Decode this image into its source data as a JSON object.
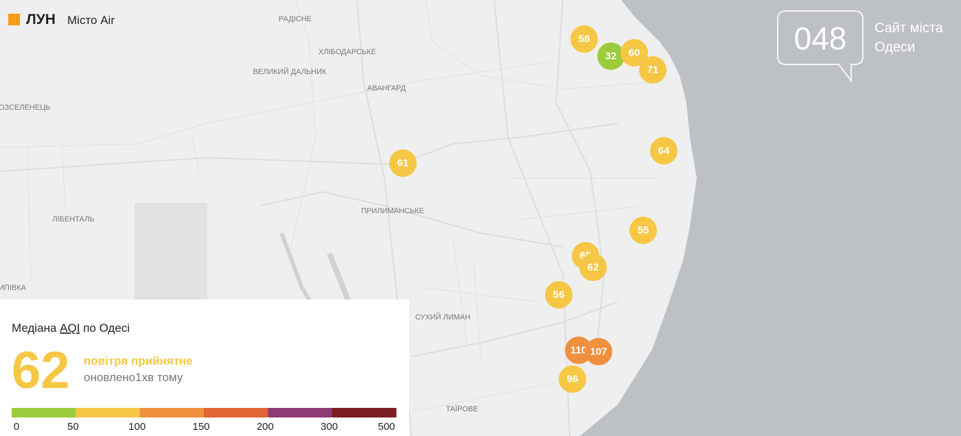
{
  "header": {
    "brand": "ЛУН",
    "product": "Місто Air"
  },
  "partner": {
    "number": "048",
    "line1": "Сайт міста",
    "line2": "Одеси"
  },
  "places": [
    "РАДІСНЕ",
    "ХЛІБОДАРСЬКЕ",
    "ВЕЛИКИЙ ДАЛЬНИК",
    "АВАНГАРД",
    "ОЗСЕЛЕНЕЦЬ",
    "ЛІБЕНТАЛЬ",
    "ПРИЛИМАНСЬКЕ",
    "ИПІВКА",
    "СУХИЙ ЛИМАН",
    "ТАЇРОВЕ"
  ],
  "stations": [
    58,
    32,
    60,
    71,
    64,
    61,
    55,
    65,
    62,
    56,
    110,
    107,
    96
  ],
  "summary": {
    "title_before": "Медіана",
    "title_link": "AQI",
    "title_after": "по Одесі",
    "value": 62,
    "status": "повітря прийнятне",
    "updated": "оновлено1хв тому"
  },
  "legend": {
    "ticks": [
      0,
      50,
      100,
      150,
      200,
      300,
      500
    ],
    "colors": [
      "#9ccc3c",
      "#f6c744",
      "#f0903e",
      "#e06436",
      "#8e3a75",
      "#7a1e22"
    ]
  }
}
